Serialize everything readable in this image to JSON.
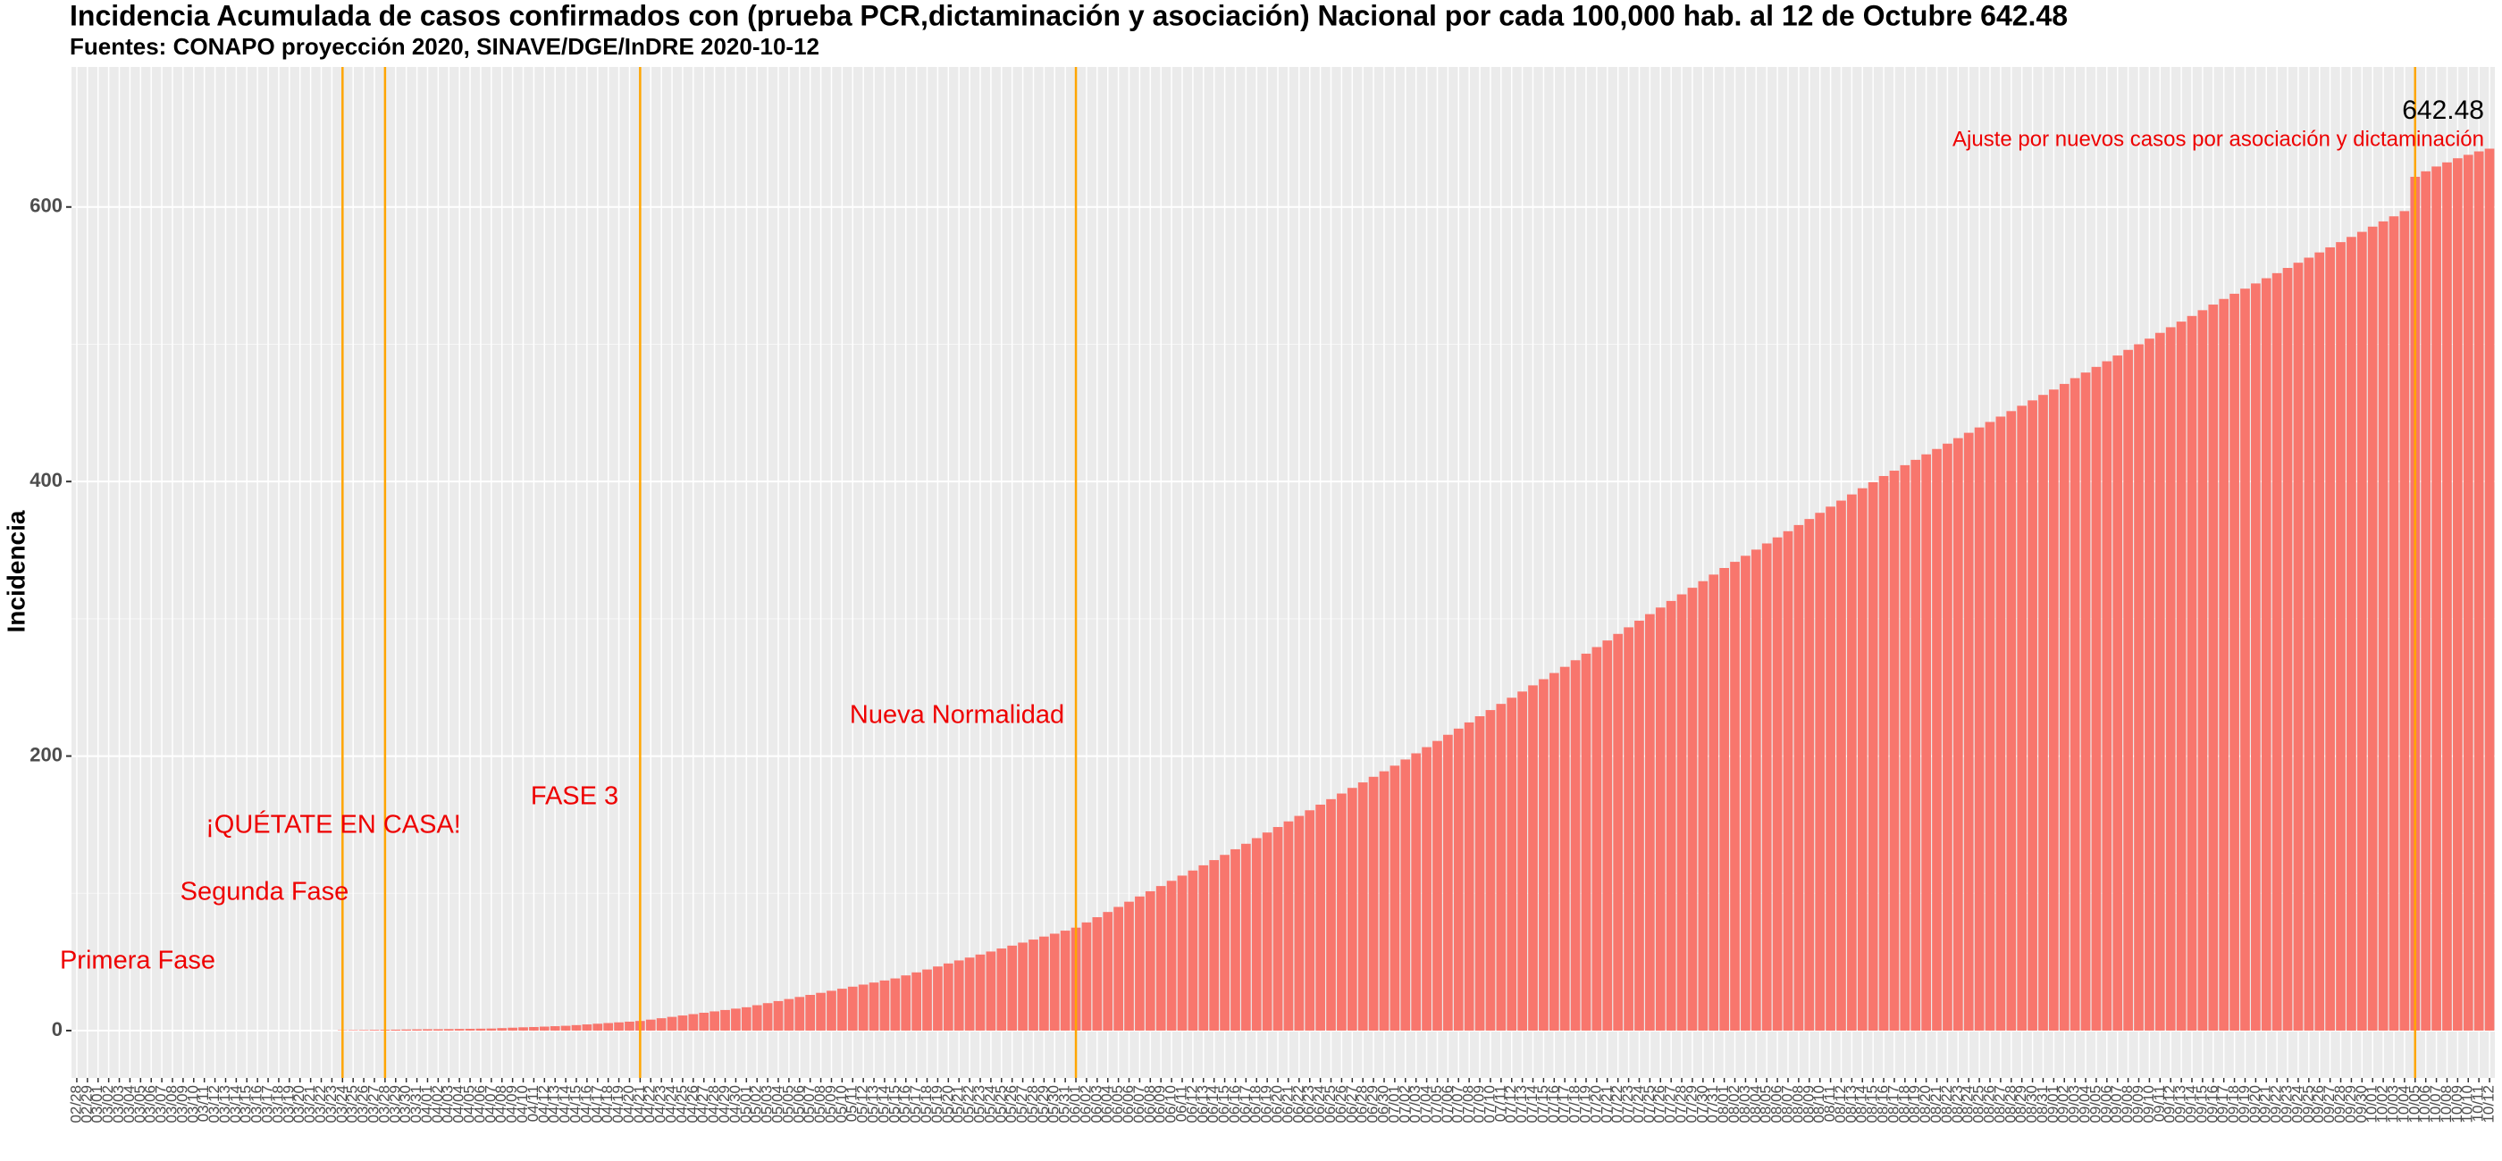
{
  "chart_data": {
    "type": "bar",
    "title": "Incidencia Acumulada de casos confirmados con (prueba PCR,dictaminación y asociación) Nacional por cada 100,000 hab. al 12 de Octubre 642.48",
    "subtitle": "Fuentes: CONAPO proyección 2020, SINAVE/DGE/InDRE 2020-10-12",
    "y_label": "Incidencia",
    "color": "#f8766d",
    "grid": true,
    "ylim": [
      -34.5,
      702
    ],
    "yticks": [
      0,
      200,
      400,
      600
    ],
    "categories": [
      "02/28",
      "02/29",
      "03/01",
      "03/02",
      "03/03",
      "03/04",
      "03/05",
      "03/06",
      "03/07",
      "03/08",
      "03/09",
      "03/10",
      "03/11",
      "03/12",
      "03/13",
      "03/14",
      "03/15",
      "03/16",
      "03/17",
      "03/18",
      "03/19",
      "03/20",
      "03/21",
      "03/22",
      "03/23",
      "03/24",
      "03/25",
      "03/26",
      "03/27",
      "03/28",
      "03/29",
      "03/30",
      "03/31",
      "04/01",
      "04/02",
      "04/03",
      "04/04",
      "04/05",
      "04/06",
      "04/07",
      "04/08",
      "04/09",
      "04/10",
      "04/11",
      "04/12",
      "04/13",
      "04/14",
      "04/15",
      "04/16",
      "04/17",
      "04/18",
      "04/19",
      "04/20",
      "04/21",
      "04/22",
      "04/23",
      "04/24",
      "04/25",
      "04/26",
      "04/27",
      "04/28",
      "04/29",
      "04/30",
      "05/01",
      "05/02",
      "05/03",
      "05/04",
      "05/05",
      "05/06",
      "05/07",
      "05/08",
      "05/09",
      "05/10",
      "05/11",
      "05/12",
      "05/13",
      "05/14",
      "05/15",
      "05/16",
      "05/17",
      "05/18",
      "05/19",
      "05/20",
      "05/21",
      "05/22",
      "05/23",
      "05/24",
      "05/25",
      "05/26",
      "05/27",
      "05/28",
      "05/29",
      "05/30",
      "05/31",
      "06/01",
      "06/02",
      "06/03",
      "06/04",
      "06/05",
      "06/06",
      "06/07",
      "06/08",
      "06/09",
      "06/10",
      "06/11",
      "06/12",
      "06/13",
      "06/14",
      "06/15",
      "06/16",
      "06/17",
      "06/18",
      "06/19",
      "06/20",
      "06/21",
      "06/22",
      "06/23",
      "06/24",
      "06/25",
      "06/26",
      "06/27",
      "06/28",
      "06/29",
      "06/30",
      "07/01",
      "07/02",
      "07/03",
      "07/04",
      "07/05",
      "07/06",
      "07/07",
      "07/08",
      "07/09",
      "07/10",
      "07/11",
      "07/12",
      "07/13",
      "07/14",
      "07/15",
      "07/16",
      "07/17",
      "07/18",
      "07/19",
      "07/20",
      "07/21",
      "07/22",
      "07/23",
      "07/24",
      "07/25",
      "07/26",
      "07/27",
      "07/28",
      "07/29",
      "07/30",
      "07/31",
      "08/01",
      "08/02",
      "08/03",
      "08/04",
      "08/05",
      "08/06",
      "08/07",
      "08/08",
      "08/09",
      "08/10",
      "08/11",
      "08/12",
      "08/13",
      "08/14",
      "08/15",
      "08/16",
      "08/17",
      "08/18",
      "08/19",
      "08/20",
      "08/21",
      "08/22",
      "08/23",
      "08/24",
      "08/25",
      "08/26",
      "08/27",
      "08/28",
      "08/29",
      "08/30",
      "08/31",
      "09/01",
      "09/02",
      "09/03",
      "09/04",
      "09/05",
      "09/06",
      "09/07",
      "09/08",
      "09/09",
      "09/10",
      "09/11",
      "09/12",
      "09/13",
      "09/14",
      "09/15",
      "09/16",
      "09/17",
      "09/18",
      "09/19",
      "09/20",
      "09/21",
      "09/22",
      "09/23",
      "09/24",
      "09/25",
      "09/26",
      "09/27",
      "09/28",
      "09/29",
      "09/30",
      "10/01",
      "10/02",
      "10/03",
      "10/04",
      "10/05",
      "10/06",
      "10/07",
      "10/08",
      "10/09",
      "10/10",
      "10/11",
      "10/12"
    ],
    "values": [
      0,
      0,
      0,
      0,
      0,
      0,
      0,
      0,
      0,
      0,
      0,
      0,
      0,
      0,
      0,
      0,
      0,
      0,
      0,
      0,
      0,
      0,
      0,
      0,
      0,
      0.3,
      0.35,
      0.4,
      0.5,
      0.6,
      0.7,
      0.8,
      0.9,
      1.0,
      1.0,
      1.1,
      1.2,
      1.3,
      1.4,
      1.5,
      1.8,
      2.1,
      2.4,
      2.6,
      2.9,
      3.2,
      3.5,
      4.0,
      4.5,
      5.0,
      5.5,
      6.0,
      6.5,
      7.0,
      8,
      9,
      10,
      11,
      12,
      13,
      14,
      15,
      16,
      17,
      18.5,
      20,
      21.5,
      23,
      24.5,
      26,
      27.5,
      29,
      30.5,
      32,
      33.5,
      35,
      36.5,
      38,
      40.2,
      42.4,
      44.5,
      46.7,
      48.9,
      51.1,
      53.2,
      55.4,
      57.6,
      59.8,
      61.9,
      64.1,
      66.3,
      68.5,
      70.6,
      72.8,
      75,
      78.8,
      82.6,
      86.4,
      90.1,
      93.9,
      97.7,
      101.5,
      105.3,
      109.1,
      112.9,
      116.6,
      120.4,
      124.2,
      128,
      132.1,
      136.1,
      140.2,
      144.3,
      148.3,
      152.4,
      156.4,
      160.5,
      164.6,
      168.6,
      172.7,
      176.8,
      180.8,
      184.9,
      188.9,
      193,
      197.5,
      202,
      206.5,
      211,
      215.5,
      220,
      224.5,
      229,
      233.5,
      238,
      242.5,
      247,
      251.5,
      256,
      260.5,
      265,
      269.8,
      274.6,
      279.4,
      284.2,
      289,
      293.8,
      298.6,
      303.4,
      308.2,
      313,
      317.8,
      322.6,
      327.4,
      332.2,
      337,
      341.5,
      345.9,
      350.4,
      354.9,
      359.3,
      363.8,
      368.3,
      372.7,
      377.2,
      381.7,
      386.1,
      390.6,
      395.1,
      399.5,
      404,
      407.9,
      411.9,
      415.8,
      419.8,
      423.7,
      427.6,
      431.6,
      435.5,
      439.4,
      443.4,
      447.3,
      451.3,
      455.2,
      459.1,
      463.1,
      467,
      471.1,
      475.3,
      479.4,
      483.5,
      487.6,
      491.8,
      495.9,
      500,
      504.1,
      508.3,
      512.4,
      516.5,
      520.6,
      524.8,
      528.9,
      533,
      536.8,
      540.5,
      544.3,
      548.1,
      551.8,
      555.6,
      559.4,
      563.1,
      566.9,
      570.6,
      574.4,
      578.2,
      581.9,
      585.7,
      589.5,
      593.2,
      597,
      622,
      626,
      629.5,
      632.5,
      635.5,
      638,
      640.5,
      642.48
    ],
    "reference_lines": [
      "03/24",
      "03/28",
      "04/21",
      "06/01",
      "10/05"
    ],
    "reference_color": "#ffa500",
    "annotation_color": "#ee0000",
    "annotations": [
      "Primera Fase",
      "Segunda Fase",
      "¡QUÉTATE EN CASA!",
      "FASE 3",
      "Nueva Normalidad",
      "Ajuste por nuevos casos por asociación y dictaminación"
    ],
    "last_value_label": "642.48"
  }
}
